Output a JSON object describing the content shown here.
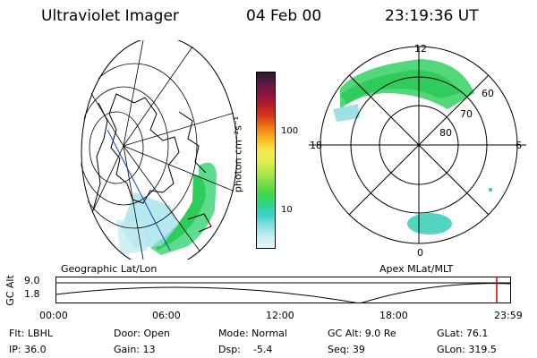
{
  "header": {
    "title": "Ultraviolet Imager",
    "date": "04 Feb 00",
    "time": "23:19:36 UT"
  },
  "colorbar": {
    "unit_label": "photon cm⁻²s⁻¹",
    "ticks": [
      "100",
      "10"
    ],
    "colors": [
      "#2e1430",
      "#5a1a40",
      "#8c1440",
      "#b41e28",
      "#d83a1a",
      "#f07a14",
      "#f8b41c",
      "#f8e44a",
      "#e6f050",
      "#b8e84c",
      "#7ede48",
      "#46d84a",
      "#30d48a",
      "#3cd0c8",
      "#8ae0e4",
      "#c8eef0",
      "#e6f6f6"
    ]
  },
  "panels": {
    "left_caption": "Geographic Lat/Lon",
    "right_caption": "Apex MLat/MLT"
  },
  "polar_plot": {
    "mlt_labels": {
      "top": "12",
      "left": "18",
      "right": "6",
      "bottom": "0"
    },
    "ring_labels": [
      "60",
      "70",
      "80"
    ]
  },
  "altitude_plot": {
    "axis_label": "GC Alt",
    "yticks": [
      "9.0",
      "1.8"
    ],
    "xticks": [
      "00:00",
      "06:00",
      "12:00",
      "18:00",
      "23:59"
    ],
    "marker_color": "#cc0000"
  },
  "info": {
    "flt": "Flt: LBHL",
    "door": "Door: Open",
    "mode": "Mode: Normal",
    "gcalt": "GC Alt: 9.0 Re",
    "glat": "GLat:  76.1",
    "ip": "IP: 36.0",
    "gain": "Gain: 13",
    "dsp": "Dsp:    -5.4",
    "seq": "Seq: 39",
    "glon": "GLon: 319.5"
  }
}
